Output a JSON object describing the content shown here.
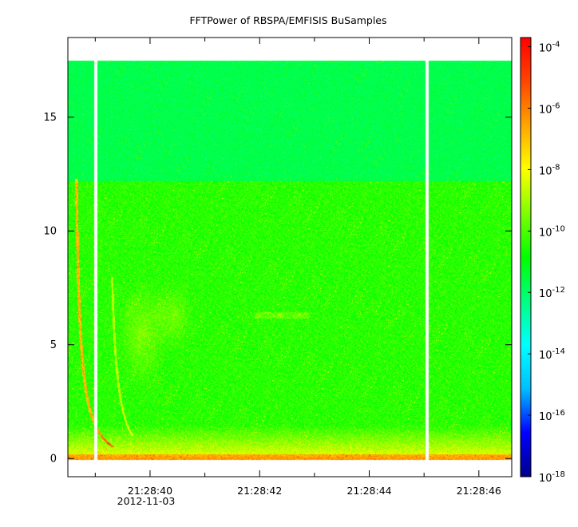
{
  "chart_data": {
    "type": "heatmap",
    "title": "FFTPower of RBSPA/EMFISIS  BuSamples",
    "xlabel": "",
    "ylabel": "",
    "x_range": [
      "21:28:38.5",
      "21:28:46.6"
    ],
    "y_range": [
      -0.8,
      18.5
    ],
    "x_ticks": [
      {
        "t": 40,
        "label": "21:28:40",
        "sublabel": "2012-11-03"
      },
      {
        "t": 42,
        "label": "21:28:42",
        "sublabel": ""
      },
      {
        "t": 44,
        "label": "21:28:44",
        "sublabel": ""
      },
      {
        "t": 46,
        "label": "21:28:46",
        "sublabel": ""
      }
    ],
    "x_minor_ticks": [
      39,
      41,
      43,
      45
    ],
    "y_ticks": [
      0,
      5,
      10,
      15
    ],
    "data_gaps_s": [
      39.0,
      45.05
    ],
    "data_top_y": 17.5,
    "band_edge_y": 12.2,
    "colorbar": {
      "scale": "log",
      "range": [
        1e-18,
        0.0002
      ],
      "ticks": [
        {
          "exp": -4,
          "base": "10",
          "sup": "-4"
        },
        {
          "exp": -6,
          "base": "10",
          "sup": "-6"
        },
        {
          "exp": -8,
          "base": "10",
          "sup": "-8"
        },
        {
          "exp": -10,
          "base": "10",
          "sup": "-10"
        },
        {
          "exp": -12,
          "base": "10",
          "sup": "-12"
        },
        {
          "exp": -14,
          "base": "10",
          "sup": "-14"
        },
        {
          "exp": -16,
          "base": "10",
          "sup": "-16"
        },
        {
          "exp": -18,
          "base": "10",
          "sup": "-18"
        }
      ],
      "colors": [
        "#00008b",
        "#0000ff",
        "#00bfff",
        "#00ffff",
        "#00ff7f",
        "#00ff00",
        "#7fff00",
        "#ffff00",
        "#ffa500",
        "#ff4500",
        "#ff0000"
      ]
    }
  }
}
